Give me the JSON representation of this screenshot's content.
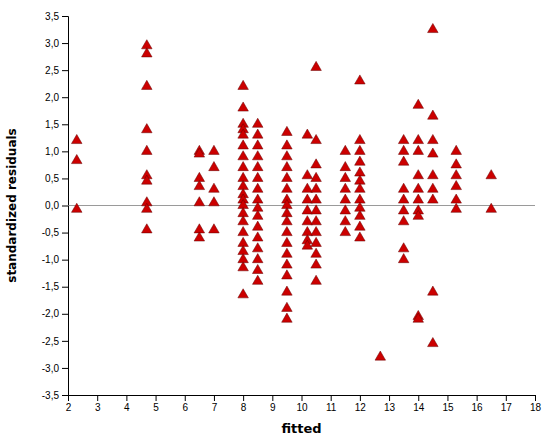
{
  "chart_data": {
    "type": "scatter",
    "xlabel": "fitted",
    "ylabel": "standardized residuals",
    "xlim": [
      2,
      18
    ],
    "ylim": [
      -3.5,
      3.5
    ],
    "xticks": [
      2,
      3,
      4,
      5,
      6,
      7,
      8,
      9,
      10,
      11,
      12,
      13,
      14,
      15,
      16,
      17,
      18
    ],
    "yticks": [
      {
        "value": -3.5,
        "label": "-3,5"
      },
      {
        "value": -3.0,
        "label": "-3,0"
      },
      {
        "value": -2.5,
        "label": "-2,5"
      },
      {
        "value": -2.0,
        "label": "-2,0"
      },
      {
        "value": -1.5,
        "label": "-1,5"
      },
      {
        "value": -1.0,
        "label": "-1,0"
      },
      {
        "value": -0.5,
        "label": "-0,5"
      },
      {
        "value": 0.0,
        "label": "0,0"
      },
      {
        "value": 0.5,
        "label": "0,5"
      },
      {
        "value": 1.0,
        "label": "1,0"
      },
      {
        "value": 1.5,
        "label": "1,5"
      },
      {
        "value": 2.0,
        "label": "2,0"
      },
      {
        "value": 2.5,
        "label": "2,5"
      },
      {
        "value": 3.0,
        "label": "3,0"
      },
      {
        "value": 3.5,
        "label": "3,5"
      }
    ],
    "grid": false,
    "color": "#cc0000",
    "marker": "triangle-up",
    "x": [
      2.3,
      2.3,
      2.3,
      4.7,
      4.7,
      4.7,
      4.7,
      4.7,
      4.7,
      4.7,
      4.7,
      4.7,
      4.7,
      6.5,
      6.5,
      6.5,
      6.5,
      6.5,
      6.5,
      6.5,
      7.0,
      7.0,
      7.0,
      7.0,
      7.0,
      8.0,
      8.0,
      8.0,
      8.0,
      8.0,
      8.0,
      8.0,
      8.0,
      8.0,
      8.0,
      8.0,
      8.0,
      8.0,
      8.0,
      8.0,
      8.0,
      8.0,
      8.0,
      8.0,
      8.0,
      8.0,
      8.5,
      8.5,
      8.5,
      8.5,
      8.5,
      8.5,
      8.5,
      8.5,
      8.5,
      8.5,
      8.5,
      8.5,
      8.5,
      8.5,
      8.5,
      8.5,
      9.5,
      9.5,
      9.5,
      9.5,
      9.5,
      9.5,
      9.5,
      9.5,
      9.5,
      9.5,
      9.5,
      9.5,
      9.5,
      9.5,
      9.5,
      9.5,
      9.5,
      9.5,
      10.2,
      10.2,
      10.2,
      10.2,
      10.2,
      10.2,
      10.2,
      10.2,
      10.2,
      10.5,
      10.5,
      10.5,
      10.5,
      10.5,
      10.5,
      10.5,
      10.5,
      10.5,
      10.5,
      10.5,
      10.5,
      10.5,
      11.5,
      11.5,
      11.5,
      11.5,
      11.5,
      11.5,
      11.5,
      11.5,
      12.0,
      12.0,
      12.0,
      12.0,
      12.0,
      12.0,
      12.0,
      12.0,
      12.0,
      12.0,
      12.0,
      12.0,
      12.7,
      13.5,
      13.5,
      13.5,
      13.5,
      13.5,
      13.5,
      13.5,
      13.5,
      13.5,
      14.0,
      14.0,
      14.0,
      14.0,
      14.0,
      14.0,
      14.0,
      14.0,
      14.0,
      14.0,
      14.5,
      14.5,
      14.5,
      14.5,
      14.5,
      14.5,
      14.5,
      14.5,
      14.5,
      15.3,
      15.3,
      15.3,
      15.3,
      15.3,
      15.3,
      16.5,
      16.5
    ],
    "values": [
      -0.07,
      1.2,
      0.83,
      2.95,
      2.8,
      2.2,
      1.4,
      1.0,
      0.55,
      0.45,
      0.05,
      -0.07,
      -0.45,
      1.0,
      0.95,
      0.5,
      0.35,
      0.05,
      -0.45,
      -0.6,
      1.0,
      0.7,
      0.3,
      0.05,
      -0.45,
      2.2,
      1.8,
      1.5,
      1.4,
      1.3,
      1.1,
      0.9,
      0.7,
      0.5,
      0.35,
      0.2,
      0.1,
      0.0,
      -0.15,
      -0.3,
      -0.5,
      -0.7,
      -0.85,
      -1.0,
      -1.15,
      -1.65,
      1.5,
      1.3,
      1.1,
      0.9,
      0.7,
      0.5,
      0.3,
      0.1,
      -0.05,
      -0.2,
      -0.4,
      -0.6,
      -0.8,
      -1.0,
      -1.2,
      -1.4,
      1.35,
      1.1,
      0.9,
      0.7,
      0.5,
      0.3,
      0.1,
      0.0,
      -0.15,
      -0.3,
      -0.5,
      -0.7,
      -0.9,
      -1.1,
      -1.3,
      -1.6,
      -1.9,
      -2.1,
      1.3,
      0.55,
      0.3,
      0.1,
      -0.1,
      -0.3,
      -0.5,
      -0.65,
      -0.75,
      2.55,
      1.2,
      0.75,
      0.5,
      0.3,
      0.1,
      -0.1,
      -0.3,
      -0.5,
      -0.7,
      -0.9,
      -1.1,
      -1.4,
      1.0,
      0.7,
      0.5,
      0.3,
      0.1,
      -0.1,
      -0.3,
      -0.5,
      2.3,
      1.2,
      1.0,
      0.8,
      0.6,
      0.45,
      0.3,
      0.1,
      -0.05,
      -0.2,
      -0.4,
      -0.6,
      -2.8,
      1.2,
      1.0,
      0.8,
      0.3,
      0.1,
      -0.1,
      -0.3,
      -0.8,
      -1.0,
      1.85,
      1.2,
      1.0,
      0.55,
      0.3,
      0.1,
      -0.1,
      -0.2,
      -2.05,
      -2.1,
      3.25,
      1.65,
      1.2,
      0.95,
      0.55,
      0.3,
      0.1,
      -1.6,
      -2.55,
      1.0,
      0.75,
      0.55,
      0.35,
      0.1,
      -0.07,
      0.55,
      -0.07
    ]
  }
}
